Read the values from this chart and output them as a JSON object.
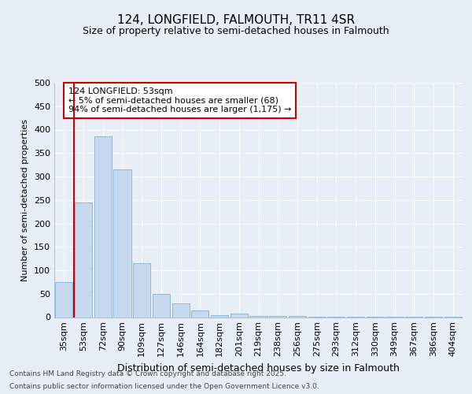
{
  "title1": "124, LONGFIELD, FALMOUTH, TR11 4SR",
  "title2": "Size of property relative to semi-detached houses in Falmouth",
  "xlabel": "Distribution of semi-detached houses by size in Falmouth",
  "ylabel": "Number of semi-detached properties",
  "annotation_title": "124 LONGFIELD: 53sqm",
  "annotation_line1": "← 5% of semi-detached houses are smaller (68)",
  "annotation_line2": "94% of semi-detached houses are larger (1,175) →",
  "footer1": "Contains HM Land Registry data © Crown copyright and database right 2025.",
  "footer2": "Contains public sector information licensed under the Open Government Licence v3.0.",
  "categories": [
    "35sqm",
    "53sqm",
    "72sqm",
    "90sqm",
    "109sqm",
    "127sqm",
    "146sqm",
    "164sqm",
    "182sqm",
    "201sqm",
    "219sqm",
    "238sqm",
    "256sqm",
    "275sqm",
    "293sqm",
    "312sqm",
    "330sqm",
    "349sqm",
    "367sqm",
    "386sqm",
    "404sqm"
  ],
  "values": [
    75,
    245,
    385,
    315,
    115,
    50,
    30,
    14,
    5,
    8,
    3,
    3,
    3,
    1,
    1,
    1,
    1,
    1,
    1,
    1,
    1
  ],
  "highlight_index": 1,
  "bar_color": "#c5d8ee",
  "bar_edge_color": "#6fa8d0",
  "highlight_line_color": "#cc0000",
  "ylim": [
    0,
    500
  ],
  "yticks": [
    0,
    50,
    100,
    150,
    200,
    250,
    300,
    350,
    400,
    450,
    500
  ],
  "background_color": "#e8eef6",
  "plot_bg_color": "#e8eef6",
  "grid_color": "#ffffff",
  "title1_fontsize": 11,
  "title2_fontsize": 9,
  "ylabel_fontsize": 8,
  "xlabel_fontsize": 9,
  "tick_fontsize": 8,
  "annotation_fontsize": 8,
  "footer_fontsize": 6.5
}
